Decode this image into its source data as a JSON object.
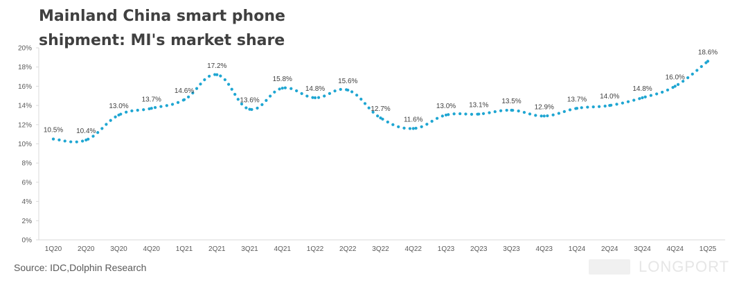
{
  "chart_data": {
    "type": "line",
    "title_lines": [
      "Mainland China smart phone",
      "shipment: MI's market share"
    ],
    "categories": [
      "1Q20",
      "2Q20",
      "3Q20",
      "4Q20",
      "1Q21",
      "2Q21",
      "3Q21",
      "4Q21",
      "1Q22",
      "2Q22",
      "3Q22",
      "4Q22",
      "1Q23",
      "2Q23",
      "3Q23",
      "4Q23",
      "1Q24",
      "2Q24",
      "3Q24",
      "4Q24",
      "1Q25"
    ],
    "values": [
      10.5,
      10.4,
      13.0,
      13.7,
      14.6,
      17.2,
      13.6,
      15.8,
      14.8,
      15.6,
      12.7,
      11.6,
      13.0,
      13.1,
      13.5,
      12.9,
      13.7,
      14.0,
      14.8,
      16.0,
      18.6
    ],
    "value_labels": [
      "10.5%",
      "10.4%",
      "13.0%",
      "13.7%",
      "14.6%",
      "17.2%",
      "13.6%",
      "15.8%",
      "14.8%",
      "15.6%",
      "12.7%",
      "11.6%",
      "13.0%",
      "13.1%",
      "13.5%",
      "12.9%",
      "13.7%",
      "14.0%",
      "14.8%",
      "16.0%",
      "18.6%"
    ],
    "y_ticks": [
      "0%",
      "2%",
      "4%",
      "6%",
      "8%",
      "10%",
      "12%",
      "14%",
      "16%",
      "18%",
      "20%"
    ],
    "ylim": [
      0,
      20
    ],
    "series_color": "#1FA6D2",
    "line_style": "dotted",
    "grid": false
  },
  "source": "Source: IDC,Dolphin Research",
  "watermark": "LONGPORT"
}
